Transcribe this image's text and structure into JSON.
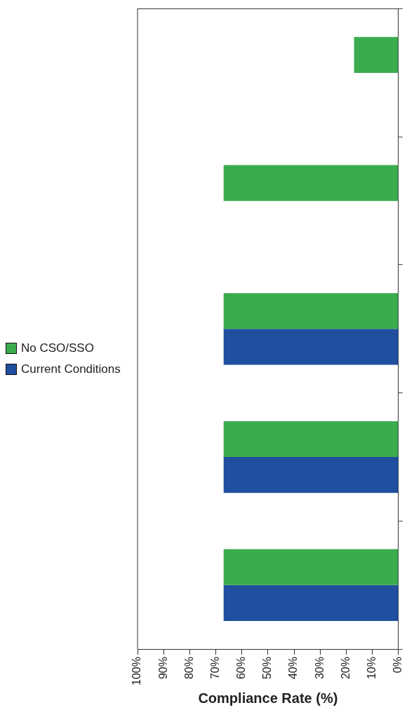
{
  "chart_data": {
    "type": "bar",
    "orientation": "horizontal",
    "xlabel": "Compliance Rate (%)",
    "categories": [
      null,
      null,
      null,
      null,
      null
    ],
    "series": [
      {
        "name": "No CSO/SSO",
        "color": "#3bab4f",
        "values": [
          17,
          67,
          67,
          67,
          67
        ]
      },
      {
        "name": "Current Conditions",
        "color": "#1f4f9e",
        "values": [
          null,
          null,
          67,
          67,
          67
        ]
      }
    ],
    "xlim": [
      100,
      0
    ],
    "xticks": [
      {
        "value": 100,
        "label": "100%"
      },
      {
        "value": 90,
        "label": "90%"
      },
      {
        "value": 80,
        "label": "80%"
      },
      {
        "value": 70,
        "label": "70%"
      },
      {
        "value": 60,
        "label": "60%"
      },
      {
        "value": 50,
        "label": "50%"
      },
      {
        "value": 40,
        "label": "40%"
      },
      {
        "value": 30,
        "label": "30%"
      },
      {
        "value": 20,
        "label": "20%"
      },
      {
        "value": 10,
        "label": "10%"
      },
      {
        "value": 0,
        "label": "0%"
      }
    ],
    "grid": false,
    "legend": "left"
  }
}
